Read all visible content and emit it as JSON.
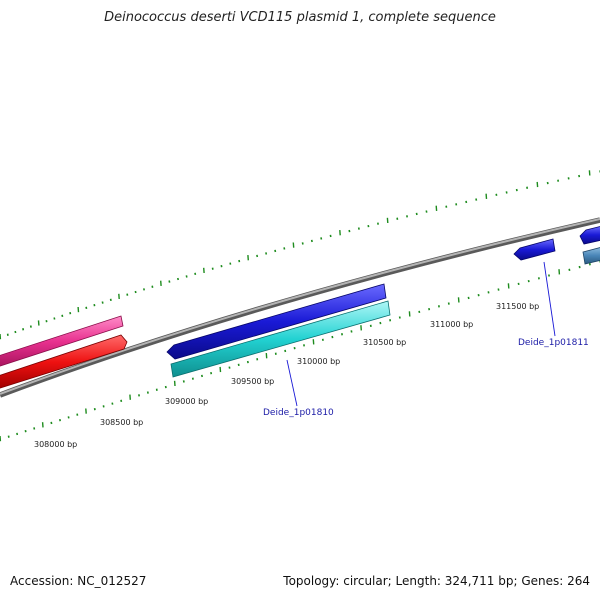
{
  "header": {
    "title": "Deinococcus deserti VCD115 plasmid 1, complete sequence"
  },
  "footer": {
    "accession": "Accession: NC_012527",
    "summary": "Topology: circular; Length: 324,711 bp; Genes: 264"
  },
  "position_labels": [
    "308000 bp",
    "308500 bp",
    "309000 bp",
    "309500 bp",
    "310000 bp",
    "310500 bp",
    "311000 bp",
    "311500 bp"
  ],
  "gene_labels": [
    "Deide_1p01810",
    "Deide_1p01811"
  ],
  "colors": {
    "backbone": "#8a8a8a",
    "tick": "#1e8c1e",
    "gene_label": "#1a1aa6",
    "pink_gene": "#e8318f",
    "red_gene": "#ee1111",
    "blue_gene": "#1a1ad6",
    "cyan_gene": "#22d2d2",
    "steel_gene": "#4a86b8"
  }
}
